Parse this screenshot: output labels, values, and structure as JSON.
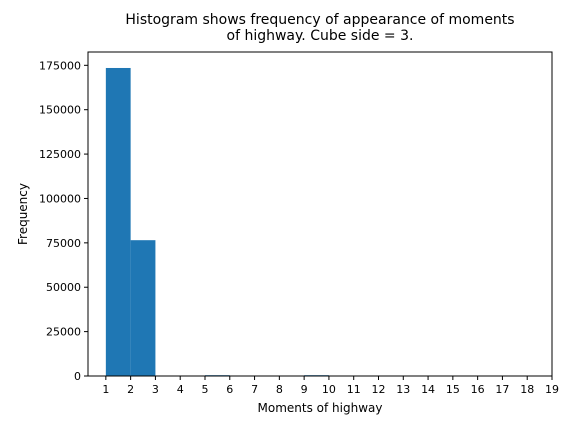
{
  "chart_data": {
    "type": "bar",
    "title_line1": "Histogram shows frequency of appearance of moments",
    "title_line2": "of highway. Cube side = 3.",
    "xlabel": "Moments of highway",
    "ylabel": "Frequency",
    "xlim": [
      0.28,
      19.0
    ],
    "ylim": [
      0,
      182500
    ],
    "xticks": [
      1,
      2,
      3,
      4,
      5,
      6,
      7,
      8,
      9,
      10,
      11,
      12,
      13,
      14,
      15,
      16,
      17,
      18,
      19
    ],
    "xtick_labels": [
      "1",
      "2",
      "3",
      "4",
      "5",
      "6",
      "7",
      "8",
      "9",
      "10",
      "11",
      "12",
      "13",
      "14",
      "15",
      "16",
      "17",
      "18",
      "19"
    ],
    "yticks": [
      0,
      25000,
      50000,
      75000,
      100000,
      125000,
      150000,
      175000
    ],
    "ytick_labels": [
      "0",
      "25000",
      "50000",
      "75000",
      "100000",
      "125000",
      "150000",
      "175000"
    ],
    "bins": [
      {
        "x0": 1,
        "x1": 2,
        "value": 173500
      },
      {
        "x0": 2,
        "x1": 3,
        "value": 76500
      },
      {
        "x0": 5,
        "x1": 6,
        "value": 300
      },
      {
        "x0": 9,
        "x1": 10,
        "value": 300
      }
    ],
    "bar_color": "#1f77b4",
    "grid": false,
    "legend": "none"
  }
}
